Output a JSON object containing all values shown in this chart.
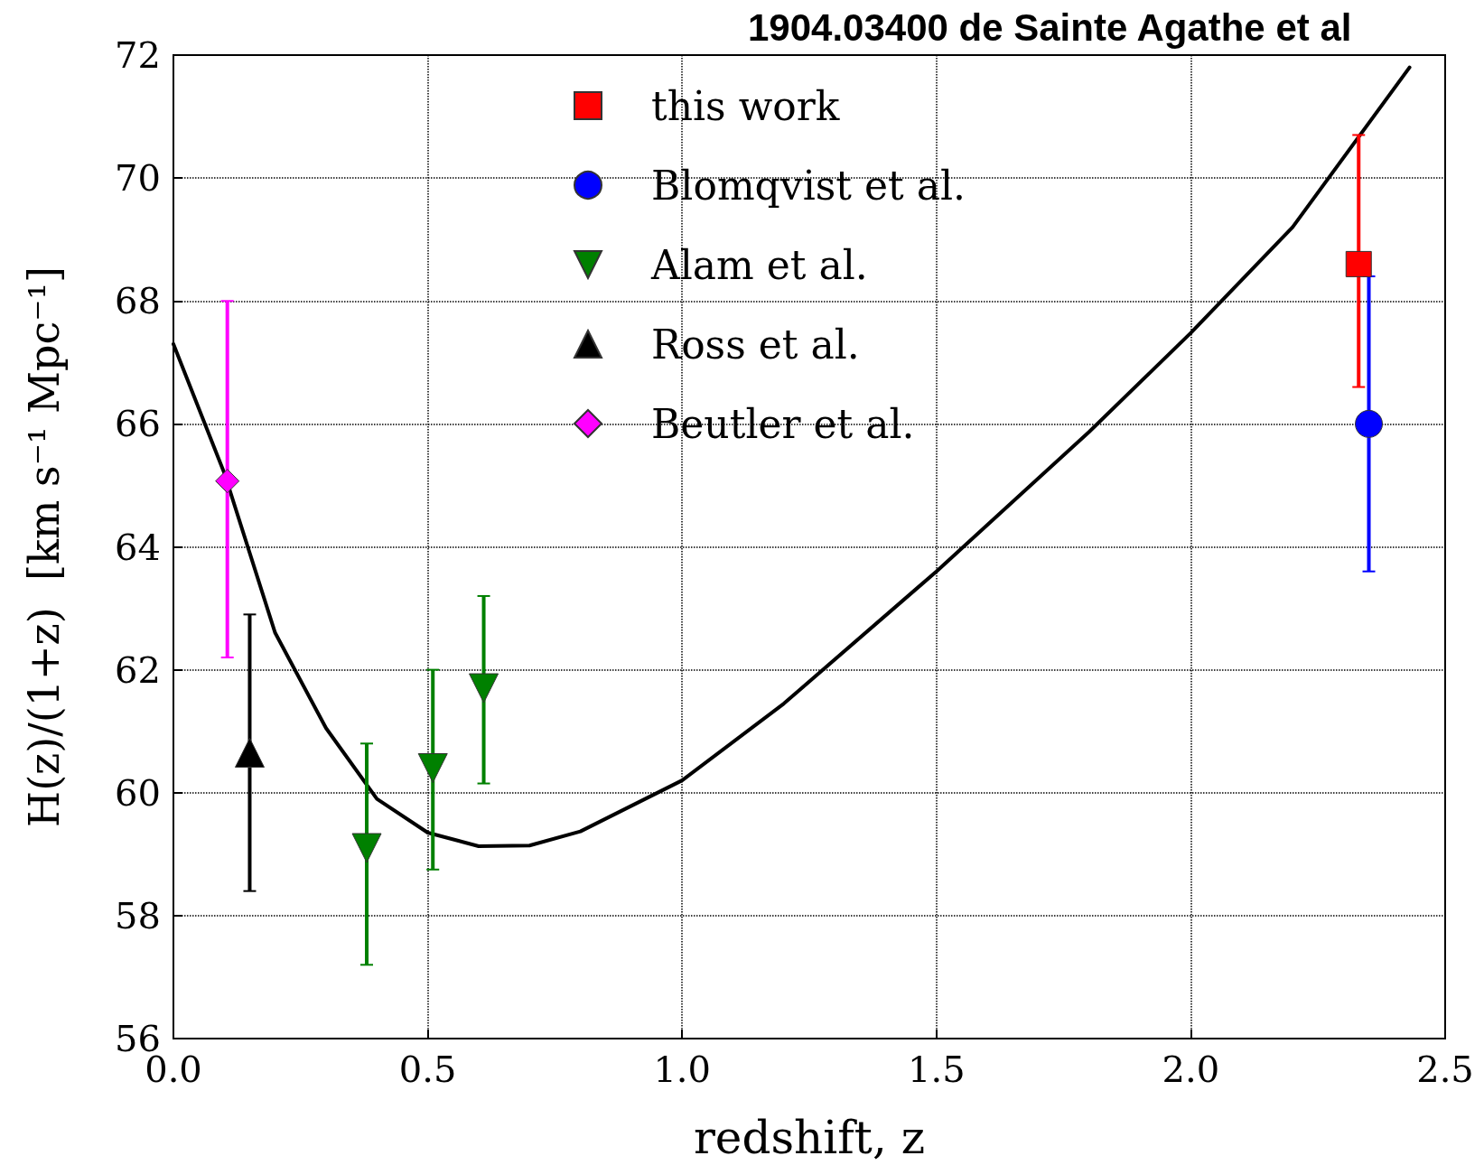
{
  "chart_data": {
    "type": "scatter",
    "title": "1904.03400 de Sainte Agathe et al",
    "xlabel": "redshift, z",
    "ylabel": "H(z)/(1+z)  [km s⁻¹ Mpc⁻¹]",
    "xlim": [
      0,
      2.5
    ],
    "xticks": [
      {
        "value": 0,
        "label": "0.0"
      },
      {
        "value": 0.5,
        "label": "0.5"
      },
      {
        "value": 1,
        "label": "1.0"
      },
      {
        "value": 1.5,
        "label": "1.5"
      },
      {
        "value": 2,
        "label": "2.0"
      },
      {
        "value": 2.5,
        "label": "2.5"
      }
    ],
    "ylim": [
      56,
      72
    ],
    "yticks": [
      56,
      58,
      60,
      62,
      64,
      66,
      68,
      70,
      72
    ],
    "grid": true,
    "legend": "top",
    "series": [
      {
        "name": "this work",
        "color": "#ff0000",
        "marker": "square",
        "x": [
          2.33
        ],
        "values": [
          68.6
        ],
        "errors": [
          [
            66.6,
            70.7
          ]
        ]
      },
      {
        "name": "Blomqvist et al.",
        "color": "#0000ff",
        "marker": "circle",
        "x": [
          2.35
        ],
        "values": [
          66.0
        ],
        "errors": [
          [
            63.6,
            68.4
          ]
        ]
      },
      {
        "name": "Alam et al.",
        "color": "#008000",
        "marker": "triangle-down",
        "x": [
          0.38,
          0.51,
          0.61
        ],
        "values": [
          59.1,
          60.4,
          61.7
        ],
        "errors": [
          [
            57.2,
            60.8
          ],
          [
            58.75,
            62.0
          ],
          [
            60.15,
            63.2
          ]
        ]
      },
      {
        "name": "Ross et al.",
        "color": "#000000",
        "marker": "triangle",
        "x": [
          0.15
        ],
        "values": [
          60.65
        ],
        "errors": [
          [
            58.4,
            62.9
          ]
        ]
      },
      {
        "name": "Beutler et al.",
        "color": "#ff00ff",
        "marker": "diamond",
        "x": [
          0.106
        ],
        "values": [
          65.07
        ],
        "errors": [
          [
            62.2,
            68.0
          ]
        ]
      },
      {
        "type": "line",
        "color": "#000000",
        "marker": "none",
        "line_style": "solid",
        "x": [
          0,
          0.1,
          0.2,
          0.3,
          0.4,
          0.5,
          0.6,
          0.7,
          0.8,
          1.0,
          1.2,
          1.5,
          1.8,
          2.0,
          2.2,
          2.43
        ],
        "values": [
          67.3,
          65.2,
          62.6,
          61.05,
          59.9,
          59.35,
          59.13,
          59.14,
          59.37,
          60.2,
          61.45,
          63.6,
          65.87,
          67.48,
          69.2,
          71.8
        ]
      }
    ]
  }
}
